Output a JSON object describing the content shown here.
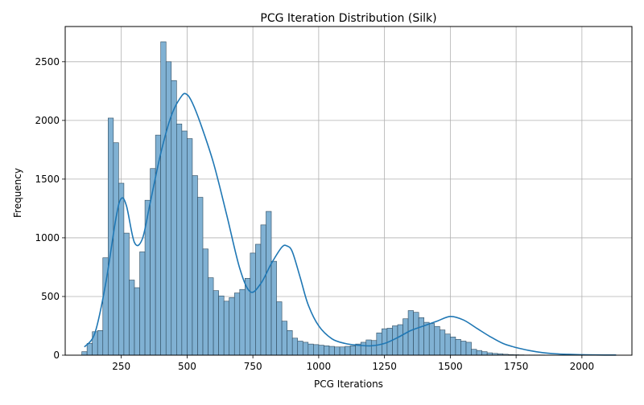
{
  "chart_data": {
    "type": "bar",
    "title": "PCG Iteration Distribution (Silk)",
    "xlabel": "PCG Iterations",
    "ylabel": "Frequency",
    "xlim": [
      37,
      2190
    ],
    "ylim": [
      0,
      2800
    ],
    "xticks": [
      250,
      500,
      750,
      1000,
      1250,
      1500,
      1750,
      2000
    ],
    "yticks": [
      0,
      500,
      1000,
      1500,
      2000,
      2500
    ],
    "grid": true,
    "bin_width": 20,
    "bins": {
      "start": 100,
      "values": [
        30,
        100,
        200,
        210,
        830,
        2020,
        1810,
        1465,
        1040,
        640,
        575,
        880,
        1320,
        1590,
        1875,
        2670,
        2500,
        2340,
        1970,
        1910,
        1845,
        1530,
        1345,
        905,
        660,
        550,
        505,
        460,
        490,
        530,
        560,
        655,
        870,
        945,
        1110,
        1225,
        800,
        455,
        290,
        210,
        145,
        120,
        110,
        95,
        90,
        85,
        80,
        75,
        70,
        70,
        75,
        80,
        95,
        110,
        130,
        125,
        190,
        225,
        230,
        250,
        260,
        310,
        380,
        365,
        320,
        280,
        270,
        245,
        215,
        180,
        155,
        135,
        120,
        110,
        50,
        40,
        30,
        20,
        15,
        12,
        8,
        5,
        4,
        3,
        2,
        2,
        2,
        2,
        1,
        1,
        1,
        1,
        1,
        1,
        1,
        1,
        1,
        1,
        1,
        1,
        1
      ]
    },
    "kde": {
      "x": [
        110,
        150,
        190,
        230,
        250,
        270,
        300,
        330,
        360,
        400,
        440,
        480,
        500,
        520,
        550,
        600,
        650,
        700,
        740,
        780,
        820,
        860,
        880,
        900,
        930,
        960,
        1000,
        1050,
        1100,
        1150,
        1200,
        1250,
        1300,
        1350,
        1400,
        1450,
        1500,
        1550,
        1600,
        1650,
        1700,
        1750,
        1800,
        1850,
        1900,
        1950,
        2000,
        2050,
        2130
      ],
      "y": [
        70,
        190,
        600,
        1170,
        1335,
        1270,
        960,
        990,
        1300,
        1720,
        2040,
        2210,
        2220,
        2150,
        1980,
        1640,
        1200,
        740,
        540,
        610,
        780,
        920,
        930,
        880,
        660,
        430,
        250,
        140,
        100,
        85,
        80,
        100,
        150,
        210,
        250,
        290,
        330,
        300,
        230,
        160,
        100,
        65,
        40,
        22,
        12,
        7,
        4,
        2,
        1
      ]
    },
    "colors": {
      "bar_fill": "#80b1d3",
      "bar_edge": "#2e4a5e",
      "kde_line": "#1f77b4",
      "grid": "#b0b0b0"
    }
  }
}
